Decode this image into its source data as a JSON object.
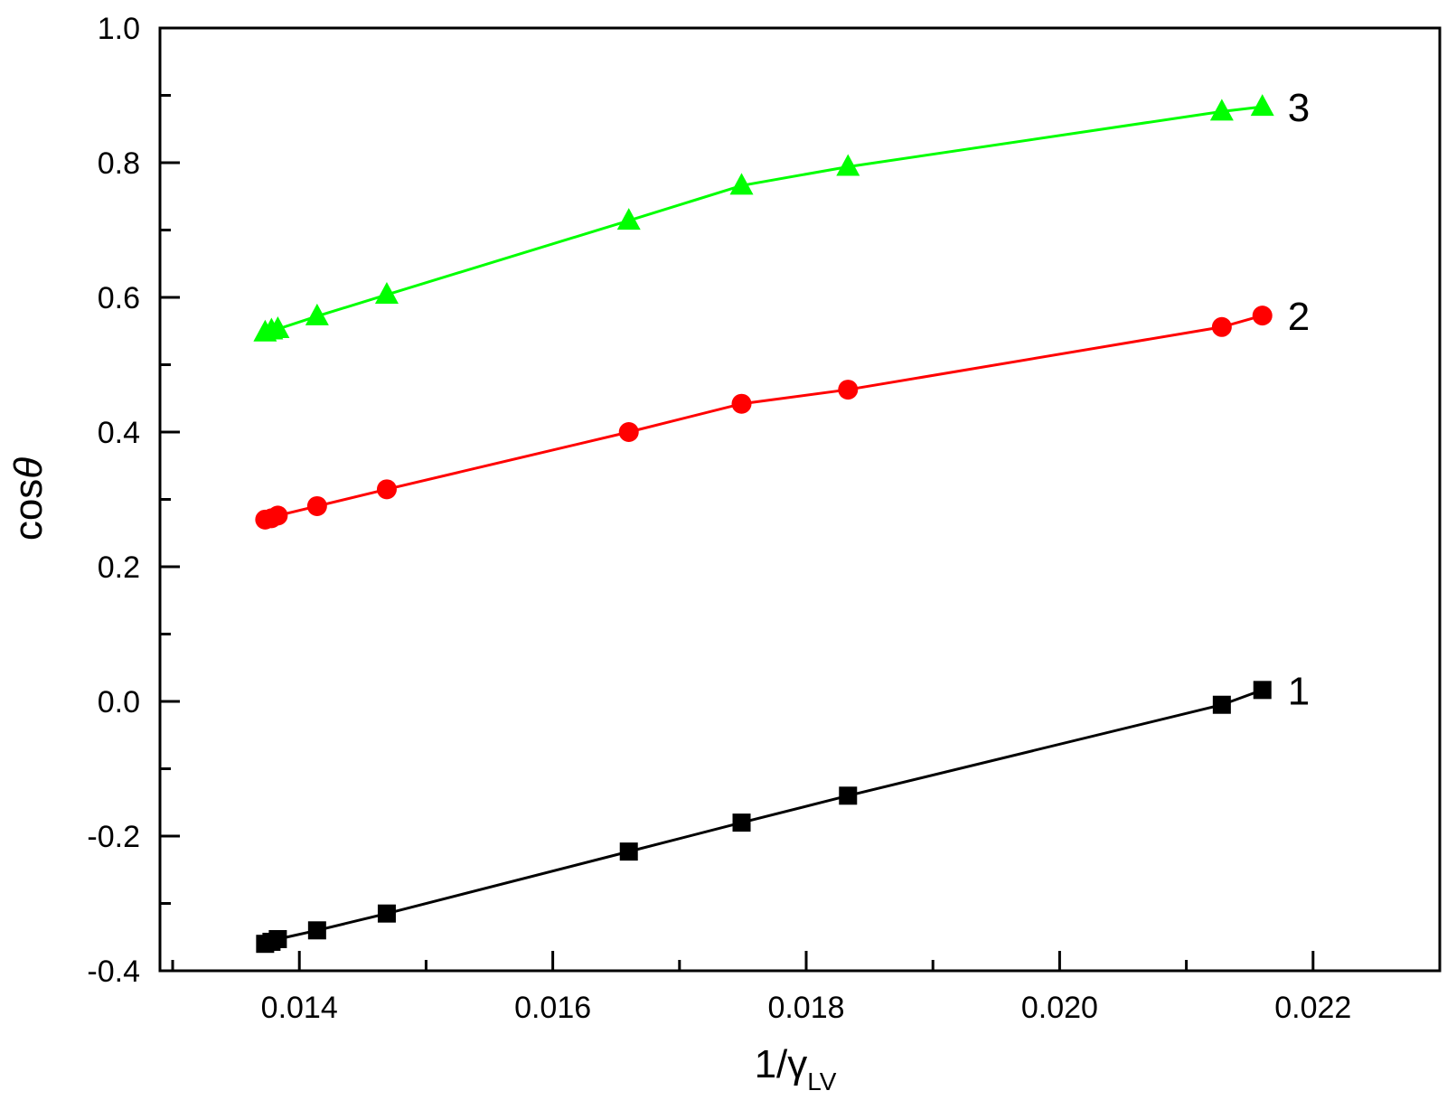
{
  "chart_data": {
    "type": "line",
    "xlim": [
      0.0129,
      0.023
    ],
    "ylim": [
      -0.4,
      1.0
    ],
    "xticks": [
      "0.014",
      "0.016",
      "0.018",
      "0.020",
      "0.022"
    ],
    "yticks": [
      "-0.4",
      "-0.2",
      "0.0",
      "0.2",
      "0.4",
      "0.6",
      "0.8",
      "1.0"
    ],
    "xlabel": {
      "main": "1/γ",
      "sub": "LV"
    },
    "ylabel": {
      "pre": "cos",
      "symbol": "θ"
    },
    "grid": false,
    "x": [
      0.01373,
      0.01378,
      0.01383,
      0.01414,
      0.01469,
      0.0166,
      0.01749,
      0.01833,
      0.02128,
      0.0216
    ],
    "series": [
      {
        "name": "1",
        "color": "#000000",
        "marker": "square",
        "values": [
          -0.36,
          -0.357,
          -0.353,
          -0.34,
          -0.315,
          -0.223,
          -0.18,
          -0.14,
          -0.005,
          0.017
        ]
      },
      {
        "name": "2",
        "color": "#ff0000",
        "marker": "circle",
        "values": [
          0.27,
          0.272,
          0.276,
          0.29,
          0.315,
          0.4,
          0.442,
          0.463,
          0.556,
          0.573
        ]
      },
      {
        "name": "3",
        "color": "#00ff00",
        "marker": "triangle",
        "values": [
          0.548,
          0.551,
          0.553,
          0.572,
          0.604,
          0.714,
          0.766,
          0.794,
          0.876,
          0.883
        ]
      }
    ]
  }
}
